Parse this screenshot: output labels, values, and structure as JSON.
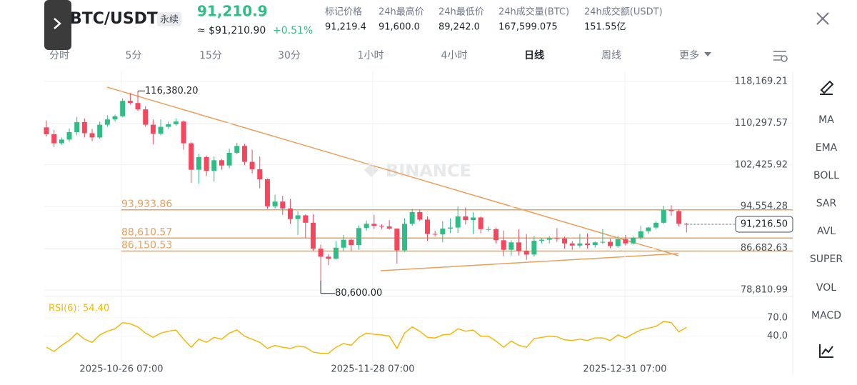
{
  "header": {
    "pair": "BTC/USDT",
    "contract": "永续",
    "price": "91,210.9",
    "price_usd": "≈ $91,210.90",
    "change": "+0.51%",
    "stats": [
      {
        "label": "标记价格",
        "value": "91,219.4"
      },
      {
        "label": "24h最高价",
        "value": "91,600.0"
      },
      {
        "label": "24h最低价",
        "value": "89,242.0"
      },
      {
        "label": "24h成交量(BTC)",
        "value": "167,599.075"
      },
      {
        "label": "24h成交额(USDT)",
        "value": "151.55亿"
      }
    ]
  },
  "tabs": [
    "分时",
    "5分",
    "15分",
    "30分",
    "1小时",
    "4小时",
    "日线",
    "周线",
    "更多"
  ],
  "sidebar": [
    "MA",
    "EMA",
    "BOLL",
    "SAR",
    "AVL",
    "SUPER",
    "VOL",
    "MACD"
  ],
  "chart_data": {
    "type": "candlestick",
    "watermark": "BINANCE",
    "ylim": [
      78000,
      120060
    ],
    "yticks": [
      {
        "value": 118169.21,
        "label": "118,169.21"
      },
      {
        "value": 110297.57,
        "label": "110,297.57"
      },
      {
        "value": 102425.92,
        "label": "102,425.92"
      },
      {
        "value": 94554.28,
        "label": "94,554.28"
      },
      {
        "value": 86682.63,
        "label": "86,682.63"
      },
      {
        "value": 78810.99,
        "label": "78,810.99"
      }
    ],
    "xticks": [
      "2025-10-26 07:00",
      "2025-11-28 07:00",
      "2025-12-31 07:00"
    ],
    "last_price": {
      "value": 91216.5,
      "label": "91,216.50"
    },
    "levels": [
      {
        "value": 93933.86,
        "label": "93,933.86"
      },
      {
        "value": 88610.57,
        "label": "88,610.57"
      },
      {
        "value": 86150.53,
        "label": "86,150.53"
      }
    ],
    "annotations": [
      {
        "value": 116380.2,
        "label": "116,380.20"
      },
      {
        "value": 80600,
        "label": "80,600.00"
      }
    ],
    "up_color": "#2ebd85",
    "down_color": "#f6465d",
    "candles": [
      [
        109500,
        110800,
        107800,
        108200
      ],
      [
        108200,
        109000,
        105800,
        106500
      ],
      [
        106500,
        107600,
        106200,
        107200
      ],
      [
        107200,
        109300,
        106800,
        108600
      ],
      [
        108600,
        111500,
        108000,
        110500
      ],
      [
        110500,
        111200,
        107600,
        108400
      ],
      [
        108400,
        109200,
        106900,
        107600
      ],
      [
        107600,
        110600,
        107300,
        110000
      ],
      [
        110000,
        111800,
        109600,
        111000
      ],
      [
        111000,
        111900,
        110600,
        111600
      ],
      [
        111600,
        115000,
        111400,
        114500
      ],
      [
        114500,
        116000,
        113800,
        114100
      ],
      [
        114100,
        116380.2,
        112600,
        112900
      ],
      [
        112900,
        113500,
        109600,
        110000
      ],
      [
        110000,
        111000,
        106300,
        108300
      ],
      [
        108300,
        111000,
        108000,
        109600
      ],
      [
        109600,
        110600,
        109200,
        110100
      ],
      [
        110100,
        111200,
        109800,
        110600
      ],
      [
        110600,
        110800,
        105300,
        106500
      ],
      [
        106500,
        106700,
        99000,
        101500
      ],
      [
        101500,
        104500,
        98900,
        103900
      ],
      [
        103900,
        104200,
        100300,
        101300
      ],
      [
        101300,
        104000,
        99300,
        103300
      ],
      [
        103300,
        103500,
        101500,
        102300
      ],
      [
        102300,
        105500,
        101800,
        104700
      ],
      [
        104700,
        106600,
        104400,
        106000
      ],
      [
        106000,
        106400,
        102400,
        103000
      ],
      [
        103000,
        105300,
        100800,
        101600
      ],
      [
        101600,
        104000,
        98000,
        99700
      ],
      [
        99700,
        99800,
        94100,
        94600
      ],
      [
        94600,
        96800,
        94200,
        95500
      ],
      [
        95500,
        96600,
        93000,
        94200
      ],
      [
        94200,
        96000,
        91300,
        92200
      ],
      [
        92200,
        93700,
        89200,
        92900
      ],
      [
        92900,
        93100,
        88600,
        91500
      ],
      [
        91500,
        93100,
        86200,
        86600
      ],
      [
        86600,
        87400,
        80600,
        85100
      ],
      [
        85100,
        85600,
        83500,
        84700
      ],
      [
        84700,
        88000,
        84600,
        86800
      ],
      [
        86800,
        89200,
        86100,
        88300
      ],
      [
        88300,
        88500,
        86100,
        87300
      ],
      [
        87300,
        91000,
        86400,
        90500
      ],
      [
        90500,
        91900,
        90000,
        91300
      ],
      [
        91300,
        93000,
        90300,
        90900
      ],
      [
        90900,
        91200,
        90300,
        90800
      ],
      [
        90800,
        92000,
        90200,
        90400
      ],
      [
        90400,
        90400,
        83800,
        86300
      ],
      [
        86300,
        92300,
        86000,
        91300
      ],
      [
        91300,
        94100,
        90900,
        93500
      ],
      [
        93500,
        94000,
        91800,
        92100
      ],
      [
        92100,
        92700,
        88100,
        89400
      ],
      [
        89400,
        90000,
        88900,
        89300
      ],
      [
        89300,
        91800,
        87800,
        90400
      ],
      [
        90400,
        92300,
        89600,
        90600
      ],
      [
        90600,
        94600,
        89600,
        92700
      ],
      [
        92700,
        94400,
        91200,
        92000
      ],
      [
        92000,
        93500,
        89300,
        92500
      ],
      [
        92500,
        92700,
        89500,
        90300
      ],
      [
        90300,
        90800,
        89800,
        90300
      ],
      [
        90300,
        90600,
        87600,
        88200
      ],
      [
        88200,
        90000,
        85200,
        86400
      ],
      [
        86400,
        88200,
        85300,
        87800
      ],
      [
        87800,
        90300,
        85300,
        86200
      ],
      [
        86200,
        89400,
        84500,
        85500
      ],
      [
        85500,
        89000,
        85100,
        88100
      ],
      [
        88100,
        88600,
        87600,
        88300
      ],
      [
        88300,
        89000,
        87600,
        88600
      ],
      [
        88600,
        90500,
        87900,
        88500
      ],
      [
        88500,
        88900,
        86600,
        87600
      ],
      [
        87600,
        88000,
        86400,
        87200
      ],
      [
        87200,
        89400,
        86800,
        87600
      ],
      [
        87600,
        89500,
        86600,
        87300
      ],
      [
        87300,
        88000,
        86800,
        87800
      ],
      [
        87800,
        90300,
        87500,
        87900
      ],
      [
        87900,
        88500,
        86700,
        87100
      ],
      [
        87100,
        89000,
        86800,
        88400
      ],
      [
        88400,
        89200,
        87200,
        87600
      ],
      [
        87600,
        88900,
        87400,
        88700
      ],
      [
        88700,
        90900,
        88300,
        89900
      ],
      [
        89900,
        90700,
        89400,
        90600
      ],
      [
        90600,
        91800,
        90300,
        91500
      ],
      [
        91500,
        94700,
        91300,
        93900
      ],
      [
        93900,
        94800,
        92800,
        93700
      ],
      [
        93700,
        94000,
        90800,
        91300
      ],
      [
        91300,
        91500,
        89700,
        91210.9
      ]
    ],
    "rsi": {
      "label": "RSI(6): 54.40",
      "color": "#f0b90b",
      "ylim": [
        0,
        100
      ],
      "yticks": [
        {
          "value": 70,
          "label": "70.0"
        },
        {
          "value": 40,
          "label": "40.0"
        }
      ],
      "values": [
        22,
        15,
        25,
        33,
        45,
        35,
        30,
        42,
        48,
        52,
        62,
        60,
        55,
        45,
        38,
        45,
        48,
        50,
        35,
        22,
        35,
        30,
        38,
        35,
        45,
        50,
        40,
        35,
        30,
        20,
        25,
        22,
        20,
        24,
        22,
        14,
        12,
        12,
        22,
        28,
        25,
        38,
        45,
        43,
        42,
        40,
        20,
        45,
        55,
        48,
        38,
        37,
        42,
        43,
        52,
        48,
        50,
        40,
        40,
        32,
        22,
        32,
        25,
        22,
        36,
        38,
        40,
        39,
        34,
        33,
        35,
        33,
        37,
        37,
        33,
        42,
        37,
        44,
        50,
        53,
        56,
        64,
        62,
        47,
        54.4
      ]
    }
  }
}
